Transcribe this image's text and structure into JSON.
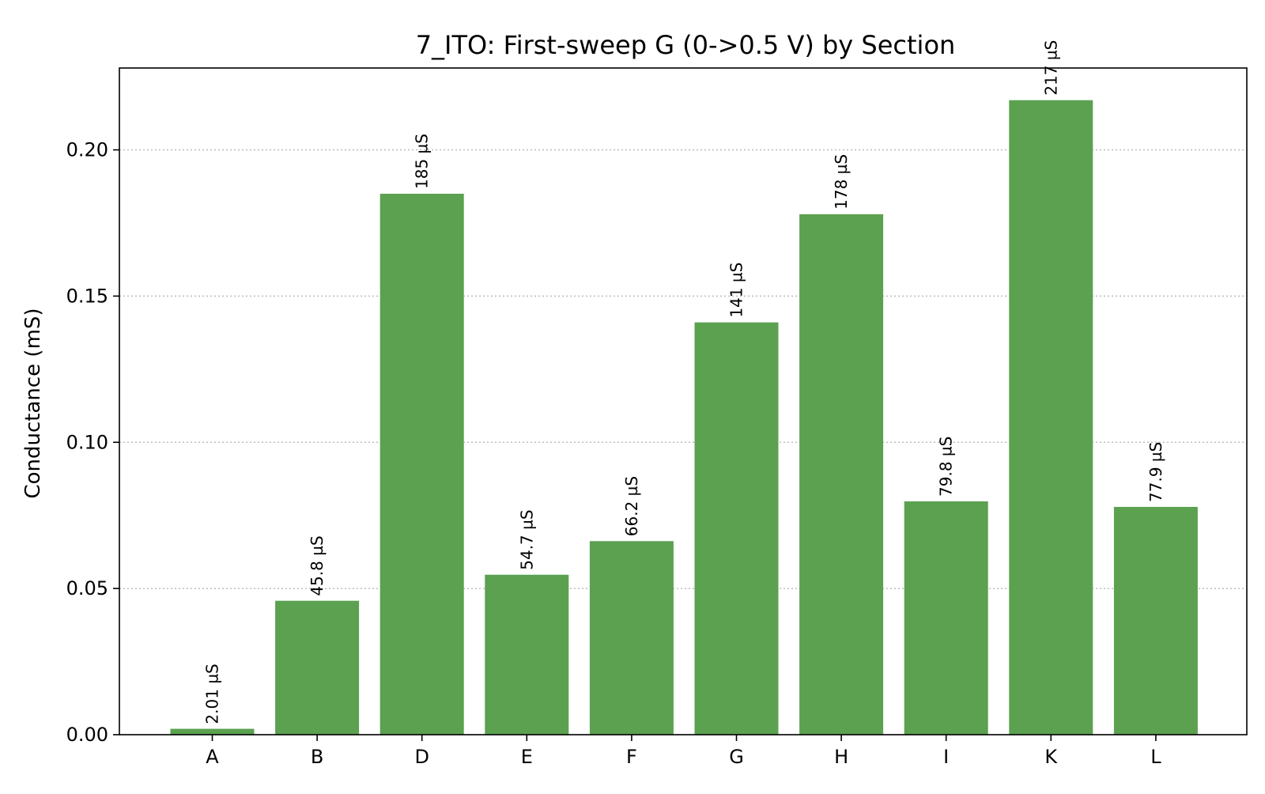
{
  "chart_data": {
    "type": "bar",
    "title": "7_ITO: First-sweep G (0->0.5 V) by Section",
    "xlabel": "",
    "ylabel": "Conductance (mS)",
    "categories": [
      "A",
      "B",
      "D",
      "E",
      "F",
      "G",
      "H",
      "I",
      "K",
      "L"
    ],
    "values": [
      0.00201,
      0.0458,
      0.185,
      0.0547,
      0.0662,
      0.141,
      0.178,
      0.0798,
      0.217,
      0.0779
    ],
    "data_labels": [
      "2.01 µS",
      "45.8 µS",
      "185 µS",
      "54.7 µS",
      "66.2 µS",
      "141 µS",
      "178 µS",
      "79.8 µS",
      "217 µS",
      "77.9 µS"
    ],
    "yticks": [
      0.0,
      0.05,
      0.1,
      0.15,
      0.2
    ],
    "ytick_labels": [
      "0.00",
      "0.05",
      "0.10",
      "0.15",
      "0.20"
    ],
    "ylim": [
      0,
      0.228
    ],
    "grid": "y, dotted",
    "legend": "none",
    "bar_color": "#5ba150"
  }
}
